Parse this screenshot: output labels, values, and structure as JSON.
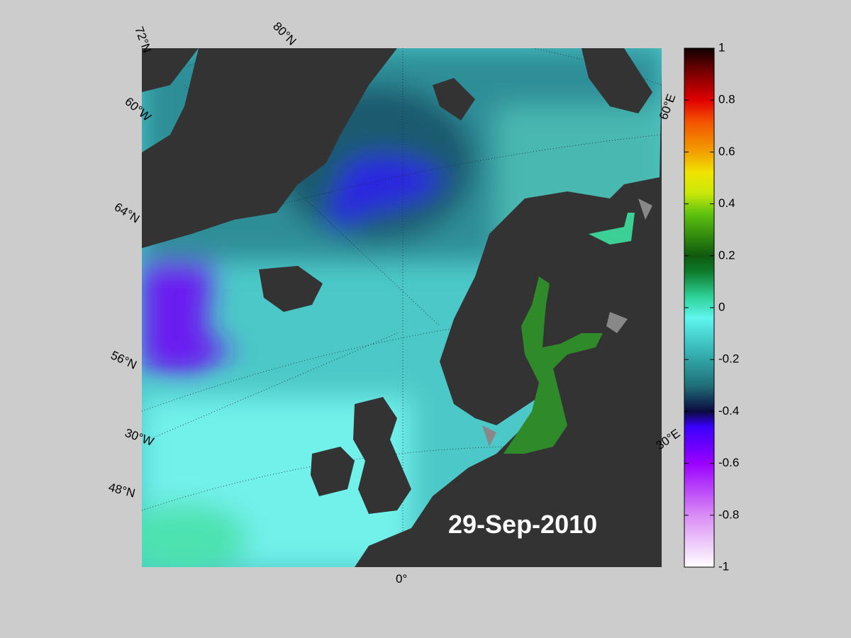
{
  "map": {
    "date": "29-Sep-2010",
    "graticule_labels": [
      "72°N",
      "80°N",
      "60°W",
      "64°N",
      "56°N",
      "30°W",
      "48°N",
      "0°",
      "60°E",
      "30°E"
    ]
  },
  "colorbar": {
    "ylim": [
      -1,
      1
    ],
    "yticks": [
      -1,
      -0.8,
      -0.6,
      -0.4,
      -0.2,
      0,
      0.2,
      0.4,
      0.6,
      0.8,
      1
    ]
  }
}
